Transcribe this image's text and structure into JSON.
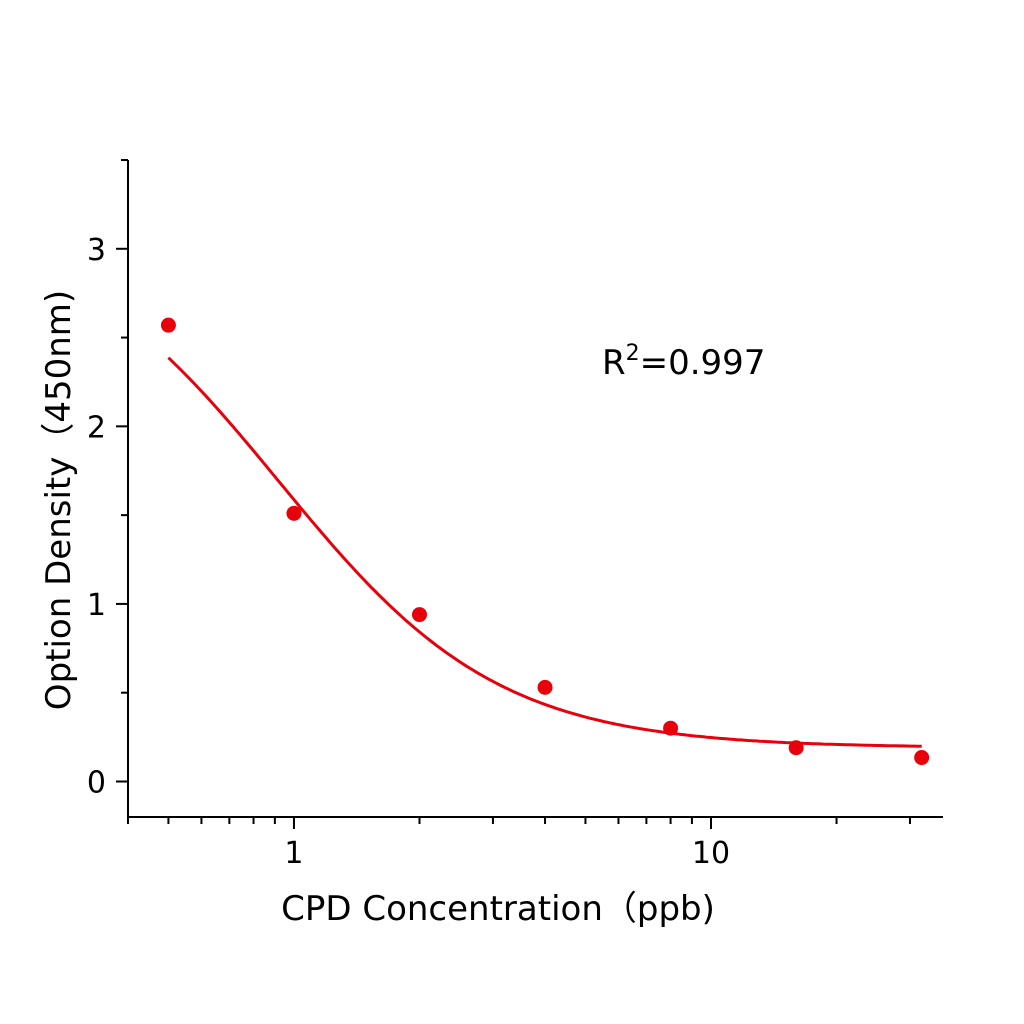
{
  "chart_data": {
    "type": "scatter",
    "xlabel": "CPD  Concentration（ppb)",
    "ylabel": "Option Density（450nm)",
    "x_scale": "log",
    "xlim": [
      0.4,
      36
    ],
    "ylim": [
      -0.2,
      3.5
    ],
    "x_ticks": [
      1,
      10
    ],
    "x_tick_labels": [
      "1",
      "10"
    ],
    "y_ticks": [
      0,
      1,
      2,
      3
    ],
    "y_tick_labels": [
      "0",
      "1",
      "2",
      "3"
    ],
    "grid": false,
    "color": "#e8000b",
    "points": {
      "x": [
        0.5,
        1,
        2,
        4,
        8,
        16,
        32
      ],
      "y": [
        2.57,
        1.51,
        0.94,
        0.53,
        0.3,
        0.19,
        0.135
      ]
    },
    "fit_curve": {
      "model": "4PL",
      "top": 3.19,
      "bottom": 0.19,
      "ec50": 0.92,
      "hill": 1.65,
      "x_range": [
        0.5,
        32
      ]
    },
    "annotation": {
      "text_main": "R",
      "superscript": "2",
      "text_rest": "=0.997"
    }
  }
}
